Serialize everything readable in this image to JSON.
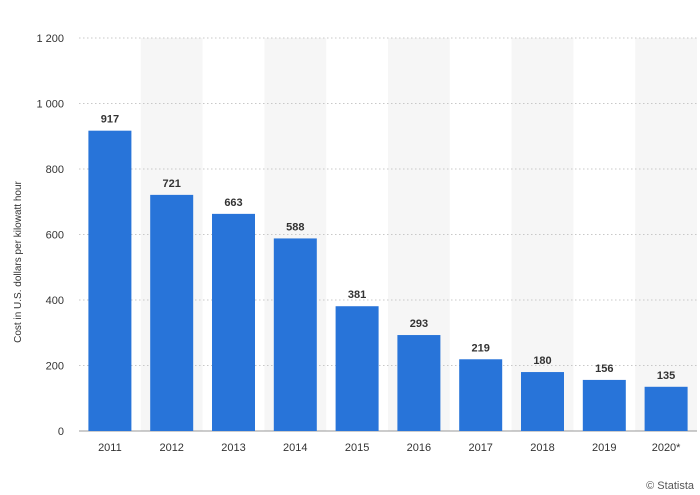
{
  "chart_data": {
    "type": "bar",
    "title": "",
    "xlabel": "",
    "ylabel": "Cost in U.S. dollars per kilowatt hour",
    "categories": [
      "2011",
      "2012",
      "2013",
      "2014",
      "2015",
      "2016",
      "2017",
      "2018",
      "2019",
      "2020*"
    ],
    "values": [
      917,
      721,
      663,
      588,
      381,
      293,
      219,
      180,
      156,
      135
    ],
    "value_labels": [
      "917",
      "721",
      "663",
      "588",
      "381",
      "293",
      "219",
      "180",
      "156",
      "135"
    ],
    "ylim": [
      0,
      1200
    ],
    "yticks": [
      0,
      200,
      400,
      600,
      800,
      1000,
      1200
    ],
    "ytick_labels": [
      "0",
      "200",
      "400",
      "600",
      "800",
      "1 000",
      "1 200"
    ],
    "grid": true,
    "legend": "none"
  },
  "colors": {
    "bar": "#2874d9",
    "band": "#f6f6f6",
    "grid": "#c8c8c8",
    "axis_text": "#333333",
    "value_text": "#333333"
  },
  "credit": "© Statista"
}
